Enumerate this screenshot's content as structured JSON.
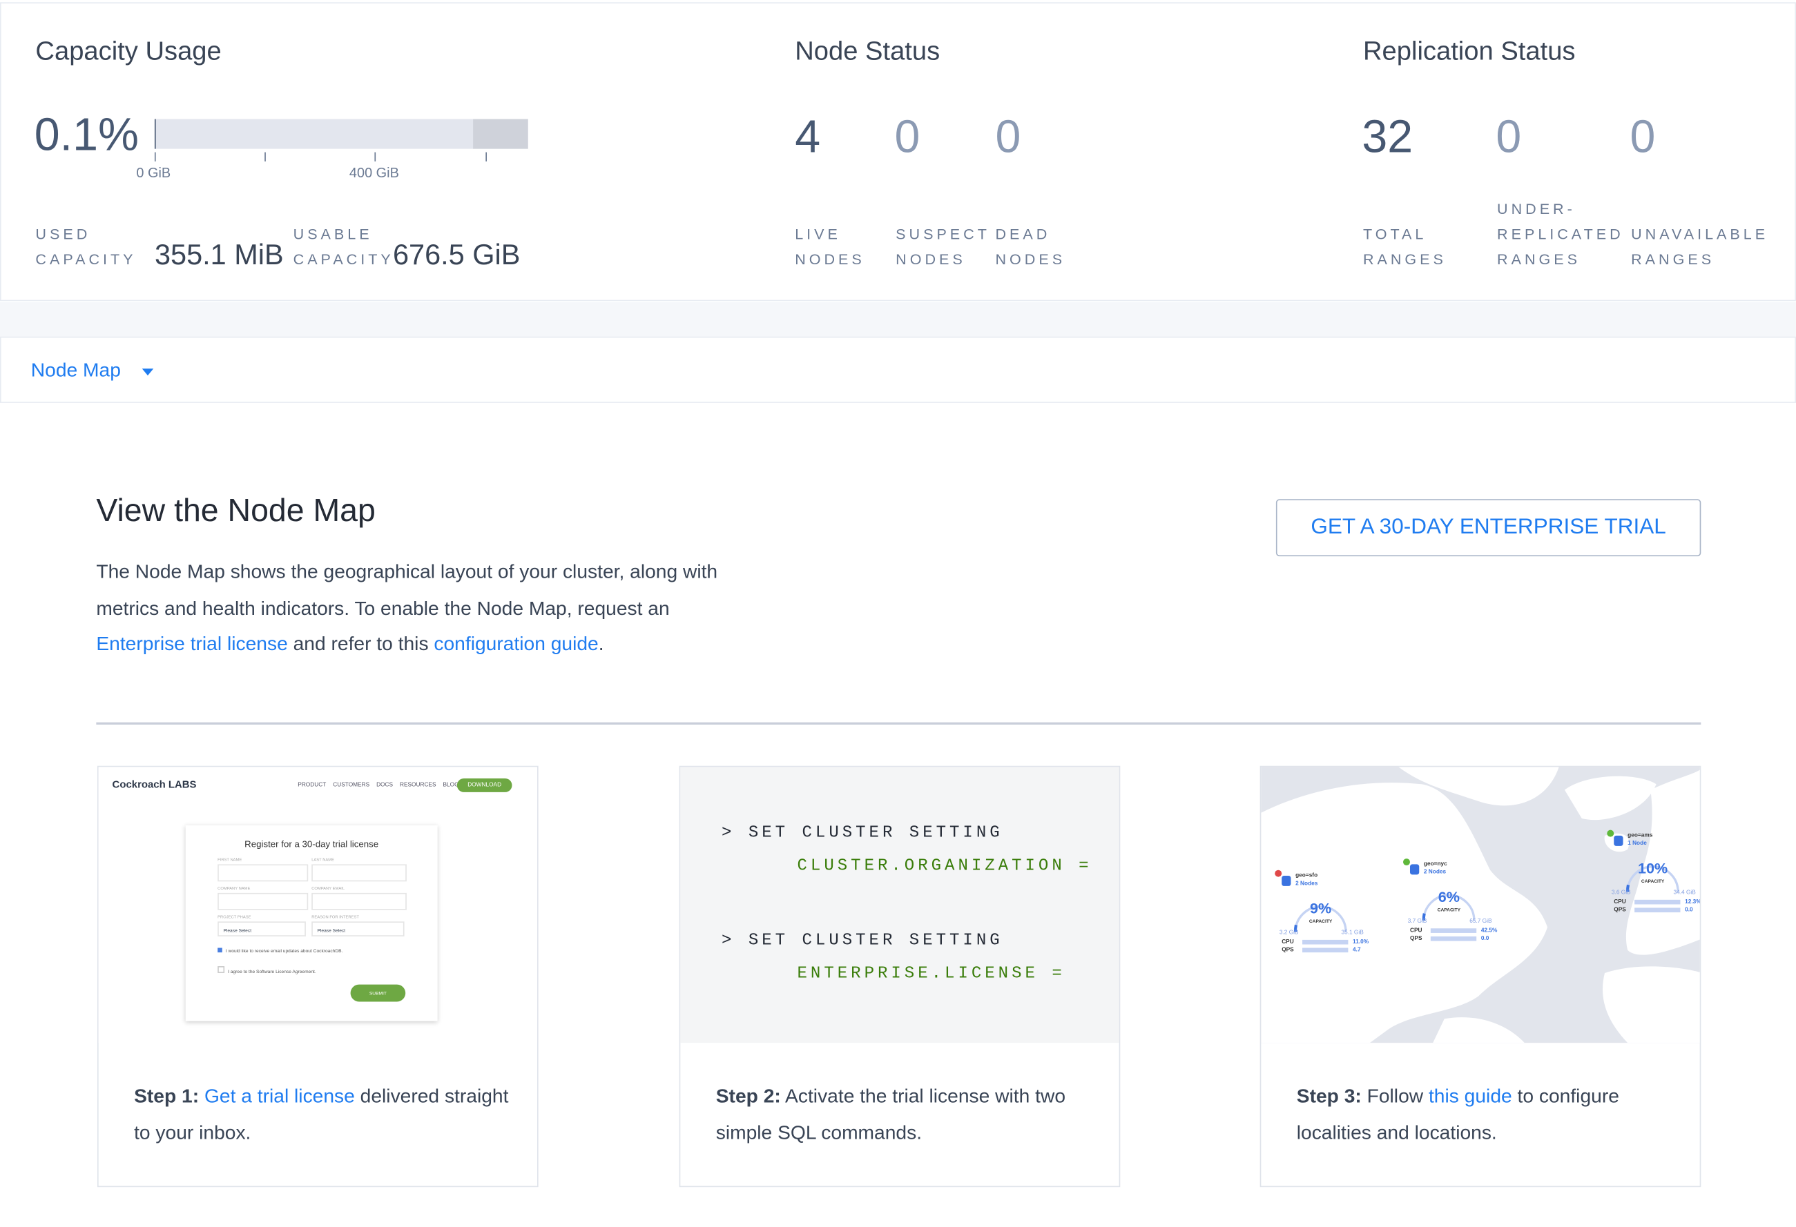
{
  "capacity": {
    "title": "Capacity Usage",
    "percent": "0.1%",
    "bar_fill_fraction": 0.001,
    "axis_labels": [
      "0 GiB",
      "400 GiB"
    ],
    "used_label": [
      "USED",
      "CAPACITY"
    ],
    "used_value": "355.1 MiB",
    "usable_label": [
      "USABLE",
      "CAPACITY"
    ],
    "usable_value": "676.5 GiB"
  },
  "node_status": {
    "title": "Node Status",
    "stats": [
      {
        "value": "4",
        "label": [
          "LIVE",
          "NODES"
        ]
      },
      {
        "value": "0",
        "label": [
          "SUSPECT",
          "NODES"
        ]
      },
      {
        "value": "0",
        "label": [
          "DEAD",
          "NODES"
        ]
      }
    ]
  },
  "replication_status": {
    "title": "Replication Status",
    "stats": [
      {
        "value": "32",
        "label": [
          "",
          "TOTAL",
          "RANGES"
        ]
      },
      {
        "value": "0",
        "label": [
          "UNDER-",
          "REPLICATED",
          "RANGES"
        ]
      },
      {
        "value": "0",
        "label": [
          "",
          "UNAVAILABLE",
          "RANGES"
        ]
      }
    ]
  },
  "dropdown": {
    "label": "Node Map",
    "icon": "caret-down-icon"
  },
  "main": {
    "heading": "View the Node Map",
    "desc_1": "The Node Map shows the geographical layout of your cluster, along with metrics and health indicators. To enable the Node Map, request an ",
    "desc_link_1": "Enterprise trial license",
    "desc_2": " and refer to this ",
    "desc_link_2": "configuration guide",
    "desc_3": ".",
    "trial_button": "GET A 30-DAY ENTERPRISE TRIAL"
  },
  "steps": [
    {
      "prefix": "Step 1:",
      "link": "Get a trial license",
      "text": " delivered straight to your inbox."
    },
    {
      "prefix": "Step 2:",
      "text": " Activate the trial license with two simple SQL commands."
    },
    {
      "prefix": "Step 3:",
      "pre": " Follow ",
      "link": "this guide",
      "text": " to configure localities and locations."
    }
  ],
  "step1_preview": {
    "logo": "Cockroach LABS",
    "nav": [
      "PRODUCT",
      "CUSTOMERS",
      "DOCS",
      "RESOURCES",
      "BLOG"
    ],
    "download": "DOWNLOAD",
    "form_title": "Register for a 30-day trial license",
    "fields": [
      "FIRST NAME",
      "LAST NAME",
      "COMPANY NAME",
      "COMPANY EMAIL",
      "PROJECT PHASE",
      "REASON FOR INTEREST"
    ],
    "select_placeholder": "Please Select",
    "checkbox_1": "I would like to receive email updates about CockroachDB.",
    "checkbox_2": "I agree to the Software License Agreement.",
    "submit": "SUBMIT"
  },
  "step2_code": {
    "line1": "> SET CLUSTER SETTING",
    "line2": "CLUSTER.ORGANIZATION =",
    "line3": "> SET CLUSTER SETTING",
    "line4": "ENTERPRISE.LICENSE ="
  },
  "step3_map": {
    "regions": [
      {
        "name": "geo=sfo",
        "nodes": "2 Nodes",
        "capacity": "9%",
        "cap_label": "CAPACITY",
        "used": "3.2 GiB",
        "total": "35.1 GiB",
        "cpu": "11.0%",
        "qps": "4.7",
        "badge": "1"
      },
      {
        "name": "geo=nyc",
        "nodes": "2 Nodes",
        "capacity": "6%",
        "cap_label": "CAPACITY",
        "used": "3.7 GiB",
        "total": "65.7 GiB",
        "cpu": "42.5%",
        "qps": "0.0",
        "badge": "ok"
      },
      {
        "name": "geo=ams",
        "nodes": "1 Node",
        "capacity": "10%",
        "cap_label": "CAPACITY",
        "used": "3.6 GiB",
        "total": "34.4 GiB",
        "cpu": "12.3%",
        "qps": "0.0",
        "badge": "ok"
      }
    ],
    "cpu_label": "CPU",
    "qps_label": "QPS"
  },
  "colors": {
    "accent": "#1f7cf0",
    "code_green": "#3a7d0a",
    "text": "#394455",
    "muted": "#6b7a93"
  }
}
